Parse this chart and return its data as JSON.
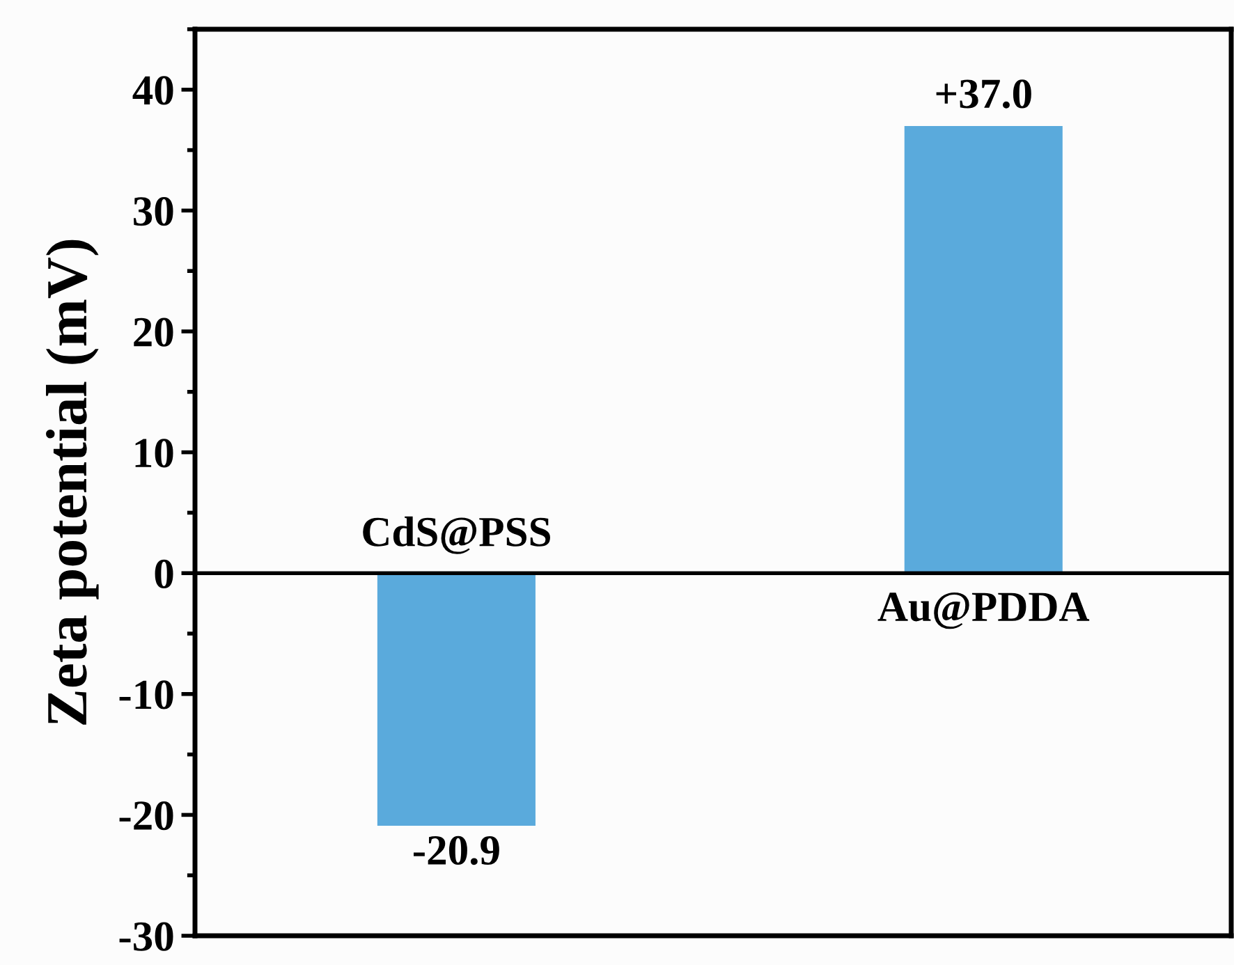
{
  "chart_data": {
    "type": "bar",
    "ylabel": "Zeta potential (mV)",
    "categories": [
      "CdS@PSS",
      "Au@PDDA"
    ],
    "values": [
      -20.9,
      37.0
    ],
    "value_labels": [
      "-20.9",
      "+37.0"
    ],
    "color": "#5aaadc",
    "ylim": [
      -30,
      45
    ],
    "yticks": [
      -30,
      -20,
      -10,
      0,
      10,
      20,
      30,
      40
    ],
    "ref_lines": [
      {
        "axis": "y",
        "value": 0,
        "color": "#000000"
      }
    ],
    "grid": false,
    "legend": false
  }
}
